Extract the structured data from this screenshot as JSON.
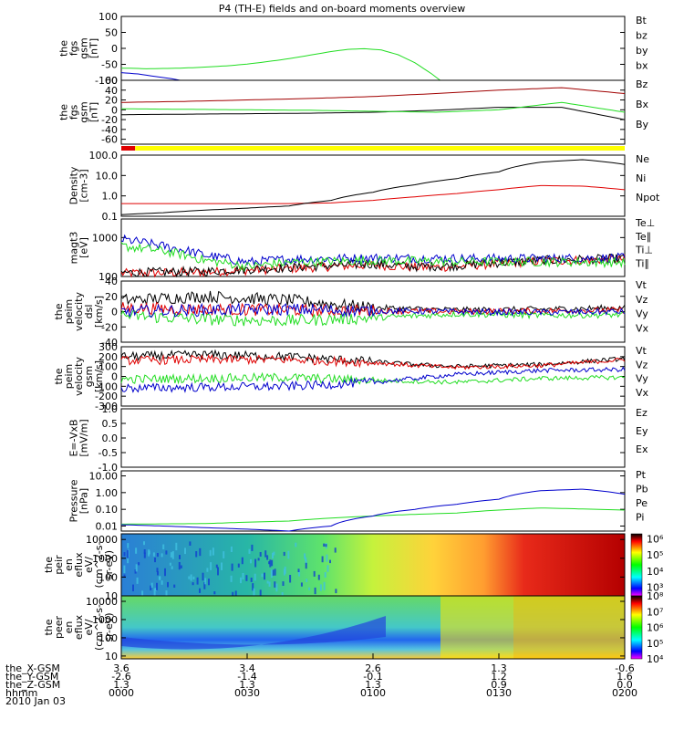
{
  "title": "P4 (TH-E) fields and on-board moments overview",
  "date_label": "2010 Jan 03",
  "colors": {
    "black": "#000000",
    "red": "#e00000",
    "darkred": "#a00000",
    "green": "#22dd22",
    "blue": "#0000cc",
    "yellow": "#ffff00"
  },
  "chart_data": [
    {
      "type": "line",
      "ylabel": [
        "the",
        "fgs",
        "gsm",
        "[nT]"
      ],
      "ylim": [
        -100,
        100
      ],
      "yticks": [
        "100",
        "50",
        "0",
        "-50",
        "-100"
      ],
      "grid": false,
      "series": [
        {
          "name": "Bt",
          "color": "#000000",
          "values": []
        },
        {
          "name": "bz",
          "color": "#a00000",
          "values": []
        },
        {
          "name": "by",
          "color": "#22dd22",
          "x": [
            0,
            2,
            6,
            10,
            14,
            18,
            22,
            26,
            30,
            34,
            38,
            42,
            46,
            50,
            54,
            58,
            62,
            66,
            70,
            74,
            76
          ],
          "values": [
            -62,
            -62,
            -64,
            -63,
            -62,
            -60,
            -57,
            -54,
            -49,
            -43,
            -36,
            -28,
            -19,
            -10,
            -3,
            -1,
            -5,
            -20,
            -45,
            -80,
            -100
          ]
        },
        {
          "name": "bx",
          "color": "#0000cc",
          "x": [
            0,
            4,
            8,
            12,
            14
          ],
          "values": [
            -76,
            -80,
            -88,
            -95,
            -100
          ]
        }
      ]
    },
    {
      "type": "line",
      "ylabel": [
        "the",
        "fgs",
        "gsm",
        "[nT]"
      ],
      "ylim": [
        -70,
        60
      ],
      "yticks": [
        "60",
        "40",
        "20",
        "0",
        "-20",
        "-40",
        "-60"
      ],
      "grid": false,
      "series": [
        {
          "name": "Bz",
          "color": "#a00000",
          "x": [
            0,
            15,
            30,
            45,
            60,
            75,
            90,
            105,
            120
          ],
          "values": [
            15,
            17,
            20,
            23,
            27,
            33,
            40,
            45,
            33
          ]
        },
        {
          "name": "Bx",
          "color": "#000000",
          "x": [
            0,
            15,
            30,
            45,
            60,
            75,
            90,
            105,
            120
          ],
          "values": [
            -10,
            -9,
            -8,
            -7,
            -5,
            -1,
            5,
            5,
            -20
          ]
        },
        {
          "name": "By",
          "color": "#22dd22",
          "x": [
            0,
            15,
            30,
            45,
            60,
            75,
            90,
            105,
            120
          ],
          "values": [
            2,
            1,
            0,
            -1,
            -3,
            -5,
            0,
            15,
            -5
          ]
        }
      ]
    },
    {
      "type": "line",
      "ylabel": [
        "Density",
        "[cm-3]"
      ],
      "ylog": true,
      "ylim": [
        0.1,
        100
      ],
      "yticks": [
        "100.0",
        "10.0",
        "1.0",
        "0.1"
      ],
      "grid": false,
      "series": [
        {
          "name": "Ne",
          "color": "#e00000",
          "x": [
            0,
            20,
            40,
            50,
            60,
            70,
            80,
            90,
            100,
            110,
            120
          ],
          "values": [
            0.42,
            0.42,
            0.42,
            0.45,
            0.6,
            0.9,
            1.3,
            2.0,
            3.2,
            3.0,
            2.0
          ]
        },
        {
          "name": "Ni",
          "color": "#000000",
          "x": [
            0,
            10,
            20,
            30,
            40,
            50,
            60,
            70,
            80,
            90,
            100,
            110,
            120
          ],
          "values": [
            0.12,
            0.15,
            0.2,
            0.25,
            0.32,
            0.6,
            1.5,
            3.5,
            7,
            15,
            45,
            60,
            35
          ]
        },
        {
          "name": "Npot",
          "color": "#0000cc",
          "values": []
        }
      ]
    },
    {
      "type": "line",
      "ylabel": [
        "magt3",
        "[eV]"
      ],
      "ylog": true,
      "ylim": [
        100,
        3000
      ],
      "yticks": [
        "1000",
        "100"
      ],
      "grid": false,
      "series": [
        {
          "name": "Te⊥",
          "color": "#e00000",
          "x": [
            0,
            20,
            40,
            60,
            70,
            80,
            100,
            120
          ],
          "values": [
            120,
            130,
            160,
            200,
            170,
            180,
            250,
            280
          ]
        },
        {
          "name": "Te∥",
          "color": "#000000",
          "x": [
            0,
            20,
            40,
            60,
            70,
            80,
            100,
            120
          ],
          "values": [
            125,
            135,
            170,
            210,
            180,
            190,
            260,
            290
          ]
        },
        {
          "name": "Ti⊥",
          "color": "#0000cc",
          "x": [
            0,
            10,
            20,
            30,
            40,
            60,
            80,
            100,
            120
          ],
          "values": [
            900,
            600,
            350,
            230,
            280,
            300,
            290,
            290,
            300
          ]
        },
        {
          "name": "Ti∥",
          "color": "#22dd22",
          "x": [
            0,
            10,
            20,
            30,
            40,
            60,
            80,
            100,
            120
          ],
          "values": [
            600,
            450,
            260,
            180,
            230,
            260,
            240,
            240,
            230
          ]
        }
      ]
    },
    {
      "type": "line",
      "ylabel": [
        "the",
        "peim",
        "velocity",
        "dsl",
        "[km/s]"
      ],
      "ylim": [
        -40,
        40
      ],
      "yticks": [
        "40",
        "20",
        "0",
        "-20",
        "-40"
      ],
      "grid": false,
      "series": [
        {
          "name": "Vt",
          "color": "#000000",
          "x": [
            0,
            20,
            40,
            60,
            80,
            100,
            120
          ],
          "values": [
            15,
            20,
            15,
            5,
            2,
            3,
            5
          ]
        },
        {
          "name": "Vz",
          "color": "#e00000",
          "x": [
            0,
            20,
            40,
            60,
            80,
            100,
            120
          ],
          "values": [
            5,
            3,
            2,
            1,
            0,
            1,
            2
          ]
        },
        {
          "name": "Vy",
          "color": "#22dd22",
          "x": [
            0,
            20,
            40,
            60,
            80,
            100,
            120
          ],
          "values": [
            -5,
            -10,
            -12,
            -8,
            -3,
            -5,
            -4
          ]
        },
        {
          "name": "Vx",
          "color": "#0000cc",
          "x": [
            0,
            20,
            40,
            60,
            80,
            100,
            120
          ],
          "values": [
            0,
            2,
            3,
            1,
            0,
            -1,
            0
          ]
        }
      ]
    },
    {
      "type": "line",
      "ylabel": [
        "the",
        "peim",
        "velocity",
        "gsm",
        "[km/s]"
      ],
      "ylim": [
        -300,
        300
      ],
      "yticks": [
        "300",
        "200",
        "100",
        "0",
        "-100",
        "-200",
        "-300"
      ],
      "grid": false,
      "series": [
        {
          "name": "Vt",
          "color": "#000000",
          "x": [
            0,
            20,
            40,
            60,
            70,
            80,
            100,
            120
          ],
          "values": [
            200,
            220,
            200,
            150,
            120,
            100,
            120,
            180
          ]
        },
        {
          "name": "Vz",
          "color": "#e00000",
          "x": [
            0,
            20,
            40,
            60,
            70,
            80,
            100,
            120
          ],
          "values": [
            160,
            170,
            170,
            140,
            110,
            90,
            110,
            170
          ]
        },
        {
          "name": "Vy",
          "color": "#22dd22",
          "x": [
            0,
            20,
            40,
            60,
            80,
            100,
            120
          ],
          "values": [
            -30,
            -20,
            -10,
            -40,
            -60,
            -20,
            -10
          ]
        },
        {
          "name": "Vx",
          "color": "#0000cc",
          "x": [
            0,
            20,
            40,
            60,
            80,
            100,
            120
          ],
          "values": [
            -120,
            -110,
            -100,
            -60,
            20,
            60,
            70
          ]
        }
      ]
    },
    {
      "type": "line",
      "ylabel": [
        "E=-VxB",
        "[mV/m]"
      ],
      "ylim": [
        -1,
        1
      ],
      "yticks": [
        "1.0",
        "0.5",
        "0.0",
        "-0.5",
        "-1.0"
      ],
      "grid": false,
      "series": [
        {
          "name": "Ez",
          "color": "#e00000",
          "values": []
        },
        {
          "name": "Ey",
          "color": "#22dd22",
          "values": []
        },
        {
          "name": "Ex",
          "color": "#0000cc",
          "values": []
        }
      ]
    },
    {
      "type": "line",
      "ylabel": [
        "Pressure",
        "[nPa]"
      ],
      "ylog": true,
      "ylim": [
        0.005,
        20
      ],
      "yticks": [
        "10.00",
        "1.00",
        "0.10",
        "0.01"
      ],
      "grid": false,
      "series": [
        {
          "name": "Pt",
          "color": "#000000",
          "values": []
        },
        {
          "name": "Pb",
          "color": "#e00000",
          "values": []
        },
        {
          "name": "Pe",
          "color": "#22dd22",
          "x": [
            0,
            20,
            40,
            60,
            80,
            100,
            120
          ],
          "values": [
            0.013,
            0.014,
            0.02,
            0.04,
            0.06,
            0.12,
            0.09
          ]
        },
        {
          "name": "Pi",
          "color": "#0000cc",
          "x": [
            0,
            20,
            40,
            50,
            60,
            70,
            80,
            90,
            100,
            110,
            120
          ],
          "values": [
            0.012,
            0.008,
            0.005,
            0.01,
            0.04,
            0.1,
            0.2,
            0.4,
            1.3,
            1.6,
            0.8
          ]
        }
      ]
    },
    {
      "type": "heatmap",
      "ylabel": [
        "the",
        "peir",
        "en",
        "eflux",
        "eV/",
        "(cm^2-s-",
        "sr-eV)"
      ],
      "ylog": true,
      "ylim": [
        10,
        20000
      ],
      "yticks": [
        "10000",
        "1000",
        "100",
        "10"
      ],
      "colorbar_ticks": [
        "10⁶",
        "10⁵",
        "10⁴",
        "10³"
      ]
    },
    {
      "type": "heatmap",
      "ylabel": [
        "the",
        "peer",
        "en",
        "eflux",
        "eV/",
        "(cm^2-s-",
        "sr-eV)"
      ],
      "ylog": true,
      "ylim": [
        7,
        20000
      ],
      "yticks": [
        "10000",
        "1000",
        "100",
        "10"
      ],
      "colorbar_ticks": [
        "10⁸",
        "10⁷",
        "10⁶",
        "10⁵",
        "10⁴"
      ]
    }
  ],
  "xaxis": {
    "rows": [
      {
        "label": "the_X-GSM",
        "values": [
          "3.6",
          "3.4",
          "2.6",
          "1.3",
          "-0.6"
        ]
      },
      {
        "label": "the_Y-GSM",
        "values": [
          "-2.6",
          "-1.4",
          "-0.1",
          "1.2",
          "1.6"
        ]
      },
      {
        "label": "the_Z-GSM",
        "values": [
          "1.3",
          "1.3",
          "1.3",
          "0.9",
          "0.0"
        ]
      },
      {
        "label": "hhmm",
        "values": [
          "0000",
          "0030",
          "0100",
          "0130",
          "0200"
        ]
      }
    ],
    "minutes_range": [
      0,
      120
    ]
  },
  "status_bar": {
    "segments": [
      {
        "color": "#e00000",
        "from": 0,
        "to": 3.3
      },
      {
        "color": "#ffff00",
        "from": 3.3,
        "to": 120
      }
    ]
  }
}
